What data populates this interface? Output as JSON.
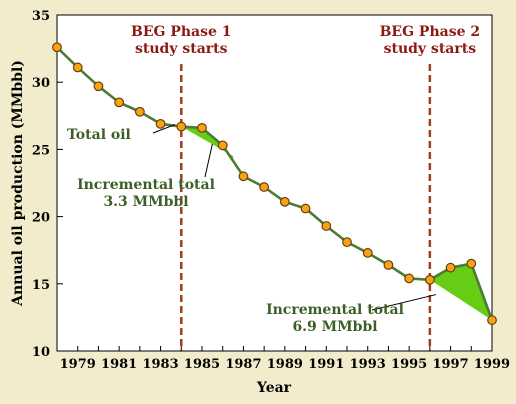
{
  "chart_data": {
    "type": "line",
    "xlabel": "Year",
    "ylabel": "Annual oil production (MMbbl)",
    "xlim": [
      1978,
      1999
    ],
    "ylim": [
      10,
      35
    ],
    "x_ticks": [
      1979,
      1981,
      1983,
      1985,
      1987,
      1989,
      1991,
      1993,
      1995,
      1997,
      1999
    ],
    "y_ticks": [
      10,
      15,
      20,
      25,
      30,
      35
    ],
    "series": [
      {
        "name": "Total oil",
        "x": [
          1978,
          1979,
          1980,
          1981,
          1982,
          1983,
          1984,
          1985,
          1986,
          1987,
          1988,
          1989,
          1990,
          1991,
          1992,
          1993,
          1994,
          1995,
          1996,
          1997,
          1998,
          1999
        ],
        "y": [
          32.6,
          31.1,
          29.7,
          28.5,
          27.8,
          26.9,
          26.7,
          26.6,
          25.3,
          23.0,
          22.2,
          21.1,
          20.6,
          19.3,
          18.1,
          17.3,
          16.4,
          15.4,
          15.3,
          16.2,
          16.5,
          12.3
        ]
      }
    ],
    "baseline_segments": [
      {
        "x": [
          1984,
          1986.5
        ],
        "y": [
          26.7,
          24.5
        ]
      },
      {
        "x": [
          1996,
          1999
        ],
        "y": [
          15.3,
          12.3
        ]
      }
    ],
    "vlines": [
      {
        "x": 1984,
        "label_lines": [
          "BEG Phase 1",
          "study starts"
        ]
      },
      {
        "x": 1996,
        "label_lines": [
          "BEG Phase 2",
          "study starts"
        ]
      }
    ],
    "annotations": [
      {
        "lines": [
          "Total oil"
        ]
      },
      {
        "lines": [
          "Incremental total",
          "3.3 MMbbl"
        ]
      },
      {
        "lines": [
          "Incremental total",
          "6.9 MMbbl"
        ]
      }
    ],
    "colors": {
      "line": "#4d7a35",
      "marker_fill": "#f7a21b",
      "marker_stroke": "#6b3f05",
      "shade": "#66cc14",
      "vline": "#a1401d",
      "background": "#f2eccc",
      "plot_background": "#ffffff"
    }
  }
}
